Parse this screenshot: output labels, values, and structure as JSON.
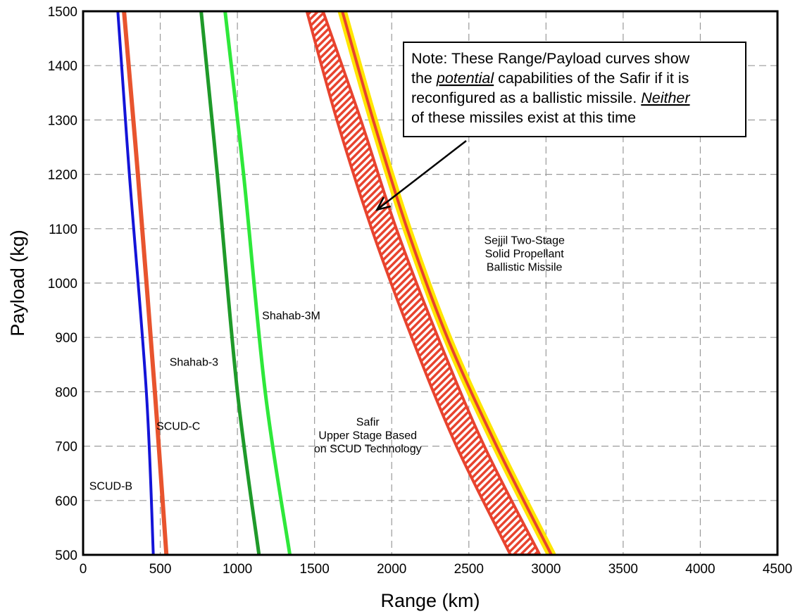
{
  "chart_data": {
    "type": "line",
    "title": "",
    "xlabel": "Range (km)",
    "ylabel": "Payload (kg)",
    "xlim": [
      0,
      4500
    ],
    "ylim": [
      500,
      1500
    ],
    "xticks": [
      0,
      500,
      1000,
      1500,
      2000,
      2500,
      3000,
      3500,
      4000,
      4500
    ],
    "yticks": [
      500,
      600,
      700,
      800,
      900,
      1000,
      1100,
      1200,
      1300,
      1400,
      1500
    ],
    "grid": true,
    "series": [
      {
        "name": "SCUD-B",
        "color": "#1414d8",
        "width": 4,
        "points": [
          [
            455,
            500
          ],
          [
            410,
            800
          ],
          [
            300,
            1200
          ],
          [
            225,
            1500
          ]
        ]
      },
      {
        "name": "SCUD-C",
        "color": "#e8542e",
        "width": 6,
        "points": [
          [
            540,
            500
          ],
          [
            465,
            800
          ],
          [
            355,
            1200
          ],
          [
            265,
            1500
          ]
        ]
      },
      {
        "name": "Shahab-3",
        "color": "#1f9a2a",
        "width": 5,
        "points": [
          [
            1140,
            500
          ],
          [
            1000,
            800
          ],
          [
            870,
            1200
          ],
          [
            765,
            1500
          ]
        ]
      },
      {
        "name": "Shahab-3M",
        "color": "#2ee83a",
        "width": 5,
        "points": [
          [
            1340,
            500
          ],
          [
            1180,
            800
          ],
          [
            1040,
            1200
          ],
          [
            920,
            1500
          ]
        ]
      },
      {
        "name": "Safir Upper Stage Based on SCUD Technology",
        "color": "#e8432e",
        "style": "hatched-band",
        "lower": [
          [
            2770,
            500
          ],
          [
            2420,
            700
          ],
          [
            2130,
            900
          ],
          [
            1870,
            1100
          ],
          [
            1645,
            1300
          ],
          [
            1450,
            1500
          ]
        ],
        "upper": [
          [
            2960,
            500
          ],
          [
            2600,
            700
          ],
          [
            2300,
            900
          ],
          [
            2030,
            1100
          ],
          [
            1800,
            1300
          ],
          [
            1555,
            1500
          ]
        ]
      },
      {
        "name": "Sejjil Two-Stage Solid Propellant Ballistic Missile",
        "color": "#e8432e",
        "halo": "#ffe600",
        "width": 4,
        "points": [
          [
            3035,
            500
          ],
          [
            2680,
            700
          ],
          [
            2360,
            900
          ],
          [
            2100,
            1100
          ],
          [
            1880,
            1300
          ],
          [
            1680,
            1500
          ]
        ]
      }
    ],
    "annotations": [
      {
        "id": "scud_b",
        "lines": [
          "SCUD-B"
        ],
        "x": 40,
        "y": 620,
        "anchor": "start"
      },
      {
        "id": "scud_c",
        "lines": [
          "SCUD-C"
        ],
        "x": 475,
        "y": 730,
        "anchor": "start"
      },
      {
        "id": "shahab3",
        "lines": [
          "Shahab-3"
        ],
        "x": 560,
        "y": 848,
        "anchor": "start"
      },
      {
        "id": "shahab3m",
        "lines": [
          "Shahab-3M"
        ],
        "x": 1160,
        "y": 933,
        "anchor": "start"
      },
      {
        "id": "safir",
        "lines": [
          "Safir",
          "Upper Stage Based",
          "on SCUD Technology"
        ],
        "x": 1845,
        "y": 738,
        "anchor": "middle"
      },
      {
        "id": "sejjil",
        "lines": [
          "Sejjil Two-Stage",
          "Solid Propellant",
          "Ballistic Missile"
        ],
        "x": 2860,
        "y": 1072,
        "anchor": "middle"
      }
    ],
    "note": {
      "lines": [
        [
          {
            "t": "Note: These Range/Payload curves show"
          }
        ],
        [
          {
            "t": "the "
          },
          {
            "t": "potential",
            "i": true,
            "u": true
          },
          {
            "t": " capabilities of the Safir if it is"
          }
        ],
        [
          {
            "t": "reconfigured as a ballistic missile. "
          },
          {
            "t": "Neither",
            "i": true,
            "u": true
          }
        ],
        [
          {
            "t": "of these missiles exist at this time"
          }
        ]
      ],
      "arrow_to": [
        1905,
        1135
      ]
    }
  }
}
